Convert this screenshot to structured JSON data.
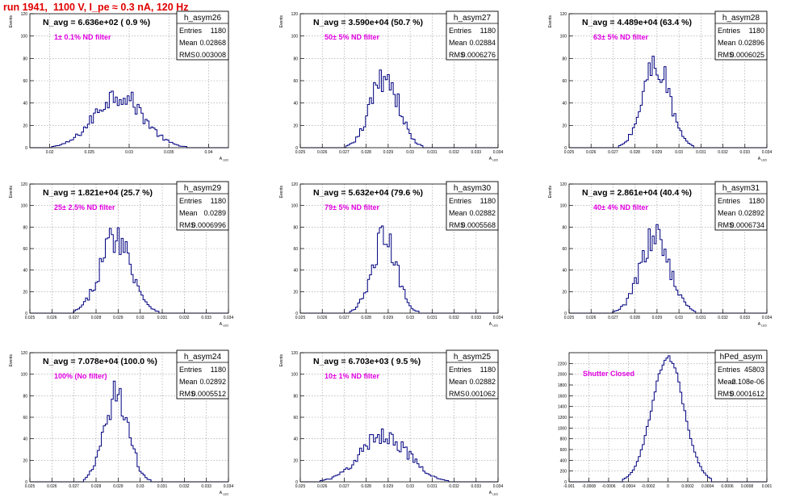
{
  "page_title": "run 1941,  1100 V, I_pe ≈ 0.3 nA, 120 Hz",
  "colors": {
    "title": "#e00000",
    "histogram": "#000080",
    "annotation": "#e000e0",
    "grid": "#9a9a9a"
  },
  "chart_data": [
    {
      "type": "histogram",
      "name": "h_asym26",
      "stats": {
        "entries_label": "Entries",
        "entries": "1180",
        "mean_label": "Mean",
        "mean": "0.02868",
        "rms_label": "RMS",
        "rms": "0.003008"
      },
      "navg_text": "N_avg = 6.636e+02 ( 0.9 %)",
      "filter_text": "1± 0.1% ND filter",
      "ylabel": "Events",
      "xlabel": "A_LED",
      "xlim": [
        0.0175,
        0.0425
      ],
      "ylim": [
        0,
        120
      ],
      "yticks": [
        0,
        20,
        40,
        60,
        80,
        100,
        120
      ],
      "xticks": [
        "0.02",
        "0.025",
        "0.03",
        "0.035",
        "0.04"
      ],
      "xtick_values": [
        0.02,
        0.025,
        0.03,
        0.035,
        0.04
      ],
      "grid": true,
      "mean": 0.02868,
      "rms": 0.003008,
      "peak": 48
    },
    {
      "type": "histogram",
      "name": "h_asym27",
      "stats": {
        "entries_label": "Entries",
        "entries": "1180",
        "mean_label": "Mean",
        "mean": "0.02884",
        "rms_label": "RMS",
        "rms": "0.0006276"
      },
      "navg_text": "N_avg = 3.590e+04 (50.7 %)",
      "filter_text": "50± 5% ND filter",
      "ylabel": "Events",
      "xlabel": "A_LED",
      "xlim": [
        0.025,
        0.034
      ],
      "ylim": [
        0,
        120
      ],
      "yticks": [
        0,
        20,
        40,
        60,
        80,
        100,
        120
      ],
      "xticks": [
        "0.025",
        "0.026",
        "0.027",
        "0.028",
        "0.029",
        "0.03",
        "0.031",
        "0.032",
        "0.033",
        "0.034"
      ],
      "xtick_values": [
        0.025,
        0.026,
        0.027,
        0.028,
        0.029,
        0.03,
        0.031,
        0.032,
        0.033,
        0.034
      ],
      "grid": true,
      "mean": 0.02884,
      "rms": 0.0006276,
      "peak": 65
    },
    {
      "type": "histogram",
      "name": "h_asym28",
      "stats": {
        "entries_label": "Entries",
        "entries": "1180",
        "mean_label": "Mean",
        "mean": "0.02896",
        "rms_label": "RMS",
        "rms": "0.0006025"
      },
      "navg_text": "N_avg = 4.489e+04 (63.4 %)",
      "filter_text": "63± 5% ND filter",
      "ylabel": "Events",
      "xlabel": "A_LED",
      "xlim": [
        0.025,
        0.034
      ],
      "ylim": [
        0,
        120
      ],
      "yticks": [
        0,
        20,
        40,
        60,
        80,
        100,
        120
      ],
      "xticks": [
        "0.025",
        "0.026",
        "0.027",
        "0.028",
        "0.029",
        "0.03",
        "0.031",
        "0.032",
        "0.033",
        "0.034"
      ],
      "xtick_values": [
        0.025,
        0.026,
        0.027,
        0.028,
        0.029,
        0.03,
        0.031,
        0.032,
        0.033,
        0.034
      ],
      "grid": true,
      "mean": 0.02896,
      "rms": 0.0006025,
      "peak": 76
    },
    {
      "type": "histogram",
      "name": "h_asym29",
      "stats": {
        "entries_label": "Entries",
        "entries": "1180",
        "mean_label": "Mean",
        "mean": "0.0289",
        "rms_label": "RMS",
        "rms": "0.0006996"
      },
      "navg_text": "N_avg = 1.821e+04 (25.7 %)",
      "filter_text": "25± 2.5% ND filter",
      "ylabel": "Events",
      "xlabel": "A_LED",
      "xlim": [
        0.025,
        0.034
      ],
      "ylim": [
        0,
        120
      ],
      "yticks": [
        0,
        20,
        40,
        60,
        80,
        100,
        120
      ],
      "xticks": [
        "0.025",
        "0.026",
        "0.027",
        "0.028",
        "0.029",
        "0.03",
        "0.031",
        "0.032",
        "0.033",
        "0.034"
      ],
      "xtick_values": [
        0.025,
        0.026,
        0.027,
        0.028,
        0.029,
        0.03,
        0.031,
        0.032,
        0.033,
        0.034
      ],
      "grid": true,
      "mean": 0.0289,
      "rms": 0.0006996,
      "peak": 72
    },
    {
      "type": "histogram",
      "name": "h_asym30",
      "stats": {
        "entries_label": "Entries",
        "entries": "1180",
        "mean_label": "Mean",
        "mean": "0.02882",
        "rms_label": "RMS",
        "rms": "0.0005568"
      },
      "navg_text": "N_avg = 5.632e+04 (79.6 %)",
      "filter_text": "79± 5% ND filter",
      "ylabel": "Events",
      "xlabel": "A_LED",
      "xlim": [
        0.025,
        0.034
      ],
      "ylim": [
        0,
        120
      ],
      "yticks": [
        0,
        20,
        40,
        60,
        80,
        100,
        120
      ],
      "xticks": [
        "0.025",
        "0.026",
        "0.027",
        "0.028",
        "0.029",
        "0.03",
        "0.031",
        "0.032",
        "0.033",
        "0.034"
      ],
      "xtick_values": [
        0.025,
        0.026,
        0.027,
        0.028,
        0.029,
        0.03,
        0.031,
        0.032,
        0.033,
        0.034
      ],
      "grid": true,
      "mean": 0.02882,
      "rms": 0.0005568,
      "peak": 70
    },
    {
      "type": "histogram",
      "name": "h_asym31",
      "stats": {
        "entries_label": "Entries",
        "entries": "1180",
        "mean_label": "Mean",
        "mean": "0.02892",
        "rms_label": "RMS",
        "rms": "0.0006734"
      },
      "navg_text": "N_avg = 2.861e+04 (40.4 %)",
      "filter_text": "40± 4% ND filter",
      "ylabel": "Events",
      "xlabel": "A_LED",
      "xlim": [
        0.025,
        0.034
      ],
      "ylim": [
        0,
        120
      ],
      "yticks": [
        0,
        20,
        40,
        60,
        80,
        100,
        120
      ],
      "xticks": [
        "0.025",
        "0.026",
        "0.027",
        "0.028",
        "0.029",
        "0.03",
        "0.031",
        "0.032",
        "0.033",
        "0.034"
      ],
      "xtick_values": [
        0.025,
        0.026,
        0.027,
        0.028,
        0.029,
        0.03,
        0.031,
        0.032,
        0.033,
        0.034
      ],
      "grid": true,
      "mean": 0.02892,
      "rms": 0.0006734,
      "peak": 70
    },
    {
      "type": "histogram",
      "name": "h_asym24",
      "stats": {
        "entries_label": "Entries",
        "entries": "1180",
        "mean_label": "Mean",
        "mean": "0.02892",
        "rms_label": "RMS",
        "rms": "0.0005512"
      },
      "navg_text": "N_avg = 7.078e+04 (100.0 %)",
      "filter_text": "100% (No filter)",
      "ylabel": "Events",
      "xlabel": "A_LED",
      "xlim": [
        0.025,
        0.034
      ],
      "ylim": [
        0,
        120
      ],
      "yticks": [
        0,
        20,
        40,
        60,
        80,
        100,
        120
      ],
      "xticks": [
        "0.025",
        "0.026",
        "0.027",
        "0.028",
        "0.029",
        "0.03",
        "0.031",
        "0.032",
        "0.033",
        "0.034"
      ],
      "xtick_values": [
        0.025,
        0.026,
        0.027,
        0.028,
        0.029,
        0.03,
        0.031,
        0.032,
        0.033,
        0.034
      ],
      "grid": true,
      "mean": 0.02892,
      "rms": 0.0005512,
      "peak": 82
    },
    {
      "type": "histogram",
      "name": "h_asym25",
      "stats": {
        "entries_label": "Entries",
        "entries": "1180",
        "mean_label": "Mean",
        "mean": "0.02882",
        "rms_label": "RMS",
        "rms": "0.001062"
      },
      "navg_text": "N_avg = 6.703e+03 ( 9.5 %)",
      "filter_text": "10± 1% ND filter",
      "ylabel": "Events",
      "xlabel": "A_LED",
      "xlim": [
        0.025,
        0.034
      ],
      "ylim": [
        0,
        120
      ],
      "yticks": [
        0,
        20,
        40,
        60,
        80,
        100,
        120
      ],
      "xticks": [
        "0.025",
        "0.026",
        "0.027",
        "0.028",
        "0.029",
        "0.03",
        "0.031",
        "0.032",
        "0.033",
        "0.034"
      ],
      "xtick_values": [
        0.025,
        0.026,
        0.027,
        0.028,
        0.029,
        0.03,
        0.031,
        0.032,
        0.033,
        0.034
      ],
      "grid": true,
      "mean": 0.02882,
      "rms": 0.001062,
      "peak": 44
    },
    {
      "type": "histogram",
      "name": "hPed_asym",
      "stats": {
        "entries_label": "Entries",
        "entries": "45803",
        "mean_label": "Mean",
        "mean": "-2.108e-06",
        "rms_label": "RMS",
        "rms": "0.0001612"
      },
      "navg_text": "",
      "filter_text": "Shutter Closed",
      "ylabel": "",
      "xlabel": "",
      "xlim": [
        -0.001,
        0.001
      ],
      "ylim": [
        0,
        2400
      ],
      "yticks": [
        0,
        200,
        400,
        600,
        800,
        1000,
        1200,
        1400,
        1600,
        1800,
        2000,
        2200
      ],
      "xticks": [
        "-0.001",
        "-0.0008",
        "-0.0006",
        "-0.0004",
        "-0.0002",
        "0",
        "0.0002",
        "0.0004",
        "0.0006",
        "0.0008",
        "0.001"
      ],
      "xtick_values": [
        -0.001,
        -0.0008,
        -0.0006,
        -0.0004,
        -0.0002,
        0,
        0.0002,
        0.0004,
        0.0006,
        0.0008,
        0.001
      ],
      "grid": true,
      "mean": -2.108e-06,
      "rms": 0.0001612,
      "peak": 2320
    }
  ]
}
